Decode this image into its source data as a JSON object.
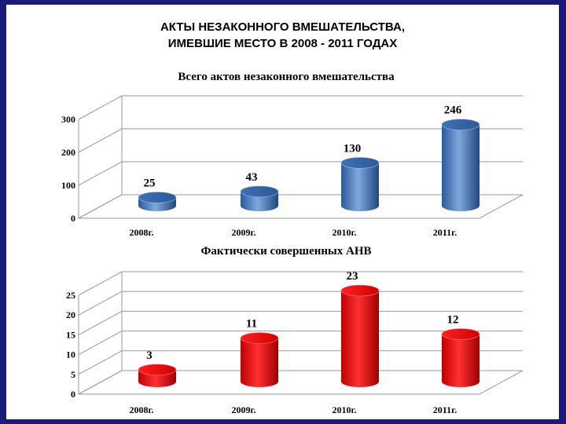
{
  "slide": {
    "title_line1": "АКТЫ НЕЗАКОННОГО ВМЕШАТЕЛЬСТВА,",
    "title_line2": "ИМЕВШИЕ МЕСТО В 2008 - 2011 ГОДАХ"
  },
  "chart_data": [
    {
      "type": "bar",
      "title": "Всего актов незаконного вмешательства",
      "categories": [
        "2008г.",
        "2009г.",
        "2010г.",
        "2011г."
      ],
      "values": [
        25,
        43,
        130,
        246
      ],
      "yticks": [
        "0",
        "100",
        "200",
        "300"
      ],
      "ylim": [
        0,
        300
      ],
      "grid": true,
      "color": "#4f81bd"
    },
    {
      "type": "bar",
      "title": "Фактически совершенных АНВ",
      "categories": [
        "2008г.",
        "2009г.",
        "2010г.",
        "2011г."
      ],
      "values": [
        3,
        11,
        23,
        12
      ],
      "yticks": [
        "0",
        "5",
        "10",
        "15",
        "20",
        "25"
      ],
      "ylim": [
        0,
        25
      ],
      "grid": true,
      "color": "#ff0000"
    }
  ]
}
